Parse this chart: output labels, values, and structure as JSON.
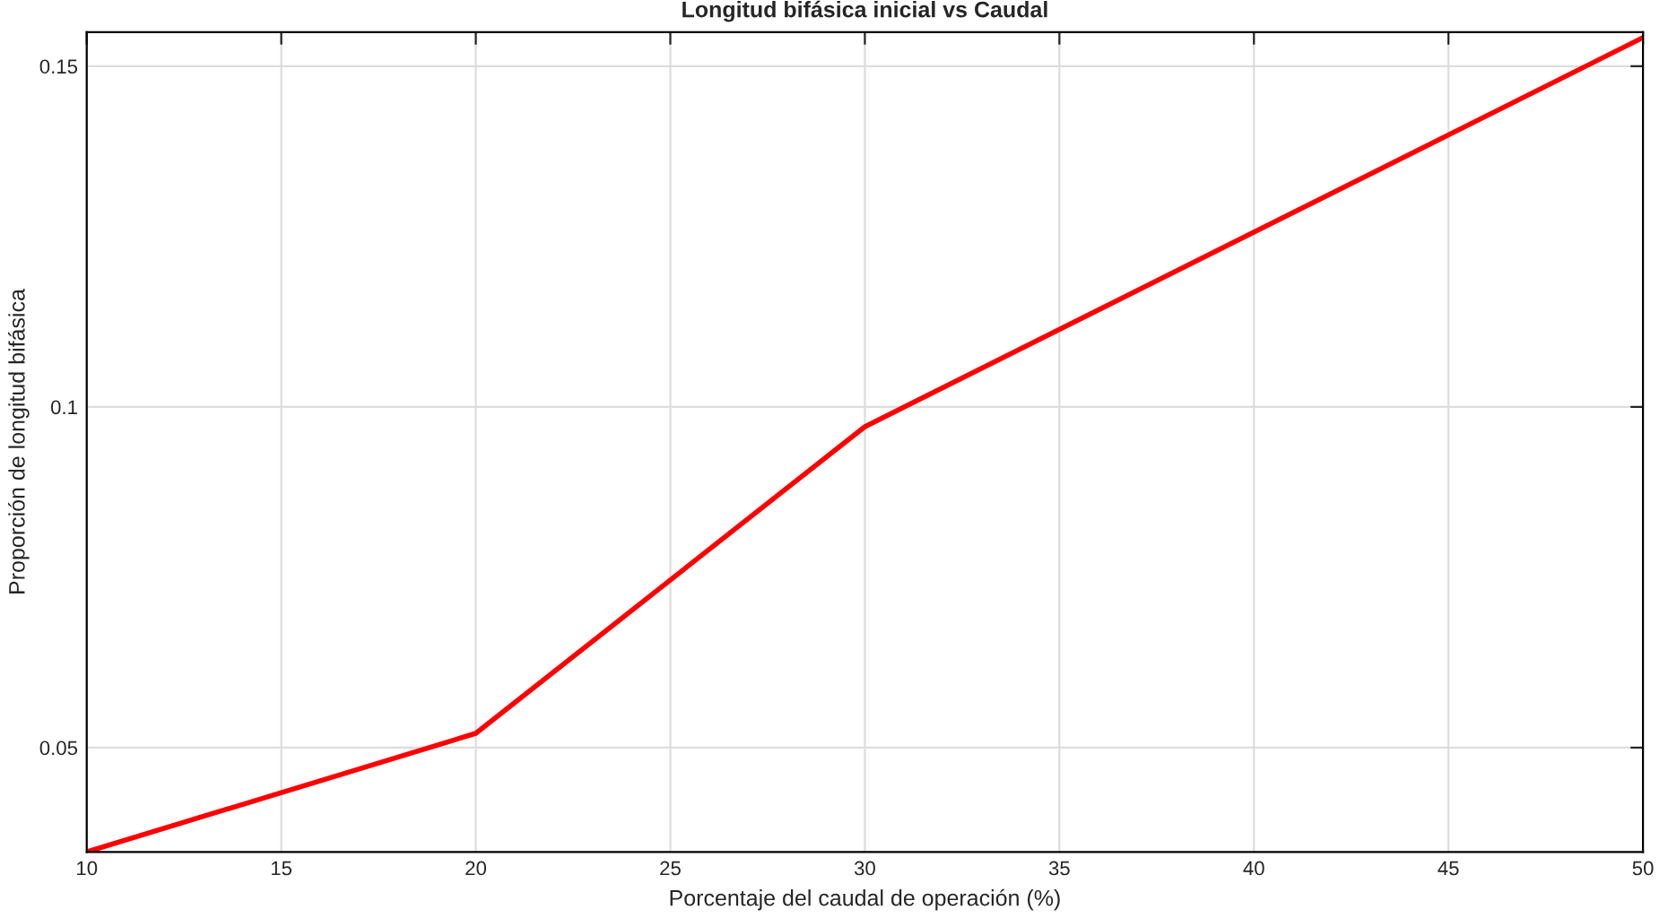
{
  "chart_data": {
    "type": "line",
    "title": "Longitud bifásica inicial vs Caudal",
    "xlabel": "Porcentaje del caudal de operación (%)",
    "ylabel": "Proporción de longitud bifásica",
    "x": [
      10,
      20,
      30,
      50
    ],
    "series": [
      {
        "color": "#ff0000",
        "values": [
          0.0347,
          0.0521,
          0.0971,
          0.1542
        ]
      }
    ],
    "xlim": [
      10,
      50
    ],
    "xticks": [
      10,
      15,
      20,
      25,
      30,
      35,
      40,
      45,
      50
    ],
    "ylim": [
      0.0347,
      0.155
    ],
    "yticks": [
      0.05,
      0.1,
      0.15
    ],
    "grid": true,
    "line_style": "solid",
    "marker": "none"
  }
}
